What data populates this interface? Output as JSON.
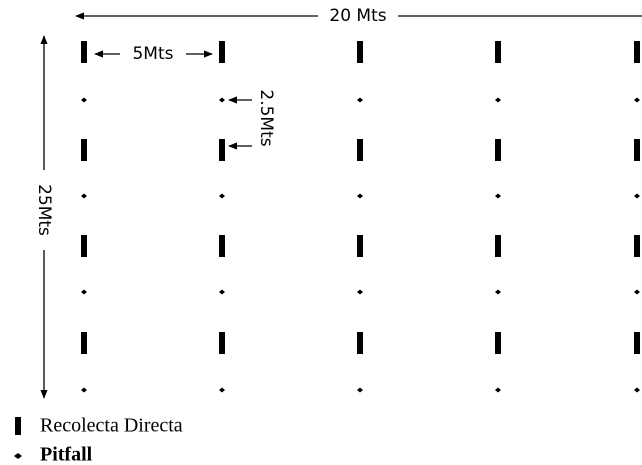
{
  "diagram": {
    "width_label": "20 Mts",
    "height_label": "25Mts",
    "column_spacing_label": "5Mts",
    "row_spacing_label": "2.5Mts",
    "legend": [
      {
        "label": "Recolecta Directa"
      },
      {
        "label": "Pitfall"
      }
    ]
  }
}
